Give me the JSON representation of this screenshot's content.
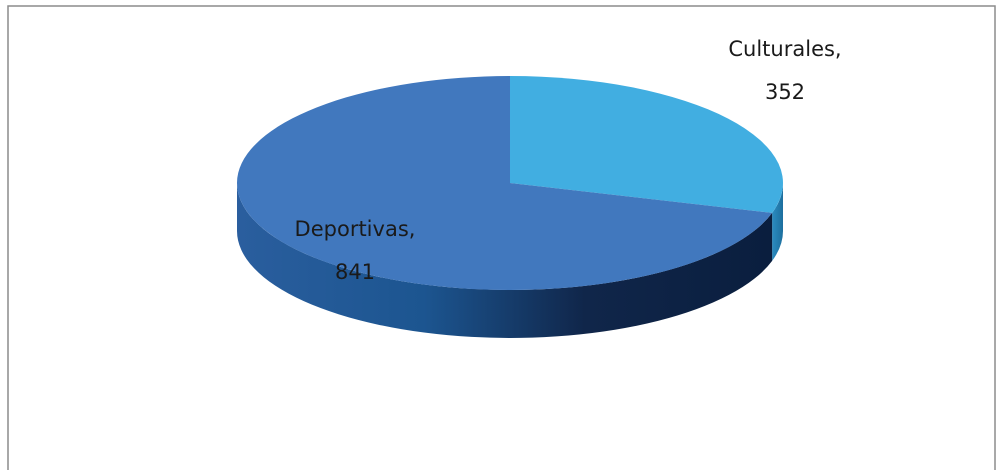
{
  "chart_data": {
    "type": "pie",
    "style": "3d",
    "categories": [
      "Deportivas,",
      "Culturales,"
    ],
    "values": [
      841,
      352
    ],
    "colors": [
      "#4178be",
      "#41aee1"
    ],
    "start": "top",
    "direction": "clockwise",
    "order": [
      1,
      0
    ]
  }
}
